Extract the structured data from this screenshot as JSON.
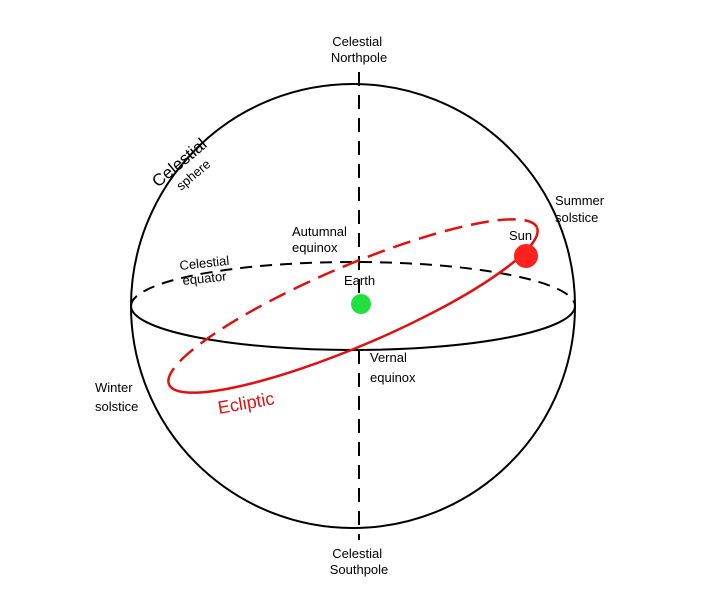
{
  "labels": {
    "north_pole": [
      "Celestial",
      "Northpole"
    ],
    "south_pole": [
      "Celestial",
      "Southpole"
    ],
    "celestial_sphere": [
      "Celestial",
      "sphere"
    ],
    "celestial_equator": [
      "Celestial",
      "equator"
    ],
    "autumnal_equinox": [
      "Autumnal",
      "equinox"
    ],
    "vernal_equinox": [
      "Vernal",
      "equinox"
    ],
    "summer_solstice": [
      "Summer",
      "solstice"
    ],
    "winter_solstice": [
      "Winter",
      "solstice"
    ],
    "earth": "Earth",
    "sun": "Sun",
    "ecliptic": "Ecliptic"
  },
  "colors": {
    "outline": "#000000",
    "ecliptic": "#e01010",
    "sun": "#ff2020",
    "earth": "#22e040",
    "background": "#ffffff"
  }
}
